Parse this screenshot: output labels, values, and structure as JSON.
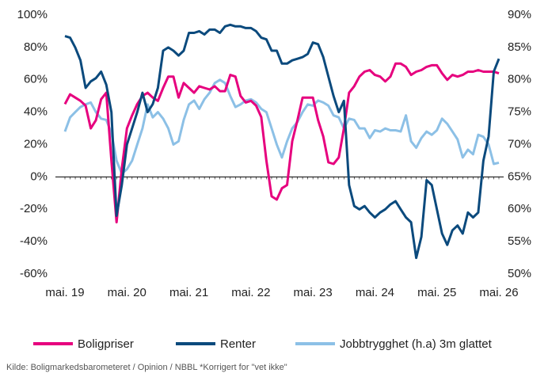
{
  "chart_data": {
    "type": "line",
    "source": "Kilde: Boligmarkedsbarometeret / Opinion / NBBL *Korrigert for \"vet ikke\"",
    "categories": [
      "mai. 19",
      null,
      null,
      null,
      null,
      null,
      null,
      null,
      null,
      null,
      null,
      null,
      "mai. 20",
      null,
      null,
      null,
      null,
      null,
      null,
      null,
      null,
      null,
      null,
      null,
      "mai. 21",
      null,
      null,
      null,
      null,
      null,
      null,
      null,
      null,
      null,
      null,
      null,
      "mai. 22",
      null,
      null,
      null,
      null,
      null,
      null,
      null,
      null,
      null,
      null,
      null,
      "mai. 23",
      null,
      null,
      null,
      null,
      null,
      null,
      null,
      null,
      null,
      null,
      null,
      "mai. 24",
      null,
      null,
      null,
      null,
      null,
      null,
      null,
      null,
      null,
      null,
      null,
      "mai. 25",
      null,
      null,
      null,
      null,
      null,
      null,
      null,
      null,
      null,
      null,
      null,
      "mai. 26"
    ],
    "series": [
      {
        "name": "Boligpriser",
        "color": "#e6007e",
        "axis": "y",
        "values": [
          45,
          51,
          49,
          47,
          44,
          30,
          35,
          48,
          52,
          10,
          -28,
          5,
          30,
          38,
          45,
          50,
          52,
          49,
          47,
          55,
          62,
          62,
          49,
          58,
          55,
          52,
          56,
          55,
          54,
          56,
          53,
          53,
          63,
          62,
          50,
          46,
          47,
          44,
          37,
          10,
          -12,
          -14,
          -7,
          -5,
          22,
          35,
          49,
          49,
          49,
          35,
          25,
          9,
          8,
          12,
          30,
          52,
          56,
          62,
          65,
          66,
          63,
          62,
          59,
          62,
          70,
          70,
          68,
          63,
          65,
          66,
          68,
          69,
          69,
          64,
          60,
          63,
          62,
          63,
          65,
          65,
          66,
          65,
          65,
          65,
          64
        ]
      },
      {
        "name": "Renter",
        "color": "#0b4a7d",
        "axis": "y",
        "values": [
          87,
          86,
          80,
          72,
          55,
          59,
          61,
          65,
          57,
          40,
          -24,
          -5,
          20,
          30,
          40,
          52,
          40,
          45,
          55,
          78,
          80,
          78,
          75,
          78,
          89,
          89,
          90,
          88,
          91,
          91,
          89,
          93,
          94,
          93,
          93,
          92,
          92,
          90,
          86,
          85,
          78,
          78,
          70,
          70,
          72,
          73,
          74,
          76,
          83,
          82,
          74,
          62,
          50,
          40,
          47,
          -5,
          -18,
          -20,
          -18,
          -22,
          -25,
          -22,
          -20,
          -17,
          -15,
          -20,
          -25,
          -28,
          -50,
          -37,
          -2,
          -5,
          -20,
          -35,
          -42,
          -33,
          -30,
          -35,
          -22,
          -25,
          -22,
          10,
          25,
          65,
          73
        ]
      },
      {
        "name": "Jobbtrygghet (h.a) 3m glattet",
        "color": "#8cc0e6",
        "axis": "y2",
        "values": [
          72,
          74.2,
          75,
          75.8,
          76.2,
          76.5,
          75,
          74,
          73.8,
          71.8,
          67.5,
          65.5,
          66.2,
          67.5,
          70,
          72.5,
          76.2,
          74.2,
          75,
          74,
          72.5,
          70,
          70.5,
          73.8,
          76.2,
          76.8,
          75.5,
          77,
          78,
          79.5,
          80,
          79.5,
          77.5,
          75.8,
          76.2,
          76.8,
          77,
          76.5,
          75.5,
          75,
          72.5,
          70,
          68,
          70.5,
          72.5,
          73.5,
          75,
          76.2,
          76,
          76.8,
          76.5,
          76,
          74.5,
          74.2,
          72.5,
          74,
          73.8,
          72.5,
          72.5,
          71,
          72.2,
          72,
          72.5,
          72.2,
          72.2,
          72,
          74.5,
          70.5,
          69.5,
          71,
          72,
          71.5,
          72.2,
          74,
          73.2,
          72,
          70.8,
          68,
          69.2,
          68.5,
          71.5,
          71.2,
          70,
          67,
          67.2
        ]
      }
    ],
    "ylim": [
      -60,
      100
    ],
    "yticks": [
      {
        "value": -60,
        "label": "-60%"
      },
      {
        "value": -40,
        "label": "-40%"
      },
      {
        "value": -20,
        "label": "-20%"
      },
      {
        "value": 0,
        "label": "0%"
      },
      {
        "value": 20,
        "label": "20%"
      },
      {
        "value": 40,
        "label": "40%"
      },
      {
        "value": 60,
        "label": "60%"
      },
      {
        "value": 80,
        "label": "80%"
      },
      {
        "value": 100,
        "label": "100%"
      }
    ],
    "y2lim": [
      50,
      90
    ],
    "y2ticks": [
      {
        "value": 50,
        "label": "50%"
      },
      {
        "value": 55,
        "label": "55%"
      },
      {
        "value": 60,
        "label": "60%"
      },
      {
        "value": 65,
        "label": "65%"
      },
      {
        "value": 70,
        "label": "70%"
      },
      {
        "value": 75,
        "label": "75%"
      },
      {
        "value": 80,
        "label": "80%"
      },
      {
        "value": 85,
        "label": "85%"
      },
      {
        "value": 90,
        "label": "90%"
      }
    ],
    "legend": "bottom"
  }
}
